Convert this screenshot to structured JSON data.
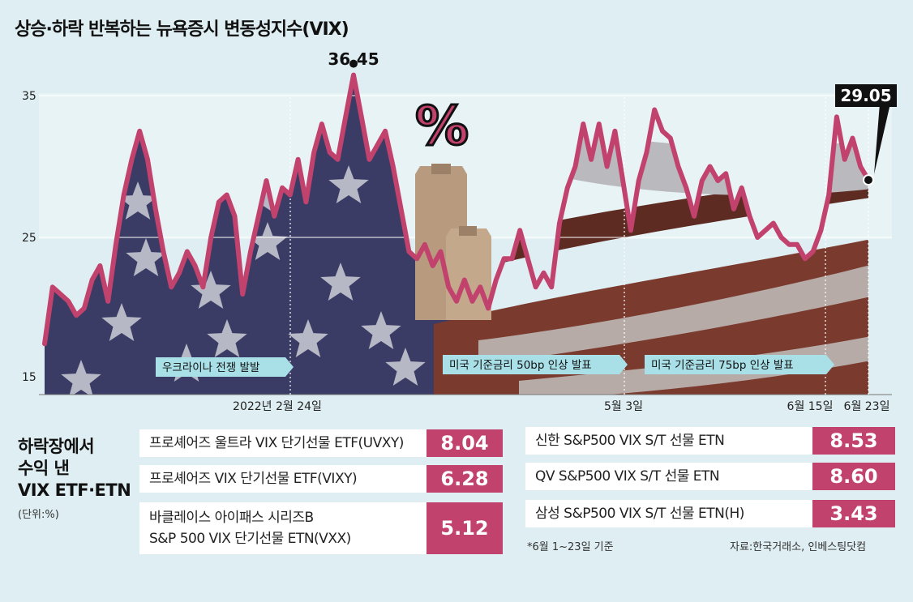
{
  "title": "상승·하락 반복하는 뉴욕증시 변동성지수(VIX)",
  "chart_data": {
    "type": "line",
    "title": "상승·하락 반복하는 뉴욕증시 변동성지수(VIX)",
    "y_ticks": [
      "35",
      "25",
      "15"
    ],
    "ylim": [
      15,
      36.45
    ],
    "x_labels": [
      "2022년 2월 24일",
      "5월 3일",
      "6월 15일",
      "6월 23일"
    ],
    "series": [
      {
        "values": [
          17.5,
          21.5,
          21.0,
          20.5,
          19.5,
          20.0,
          22.0,
          23.0,
          20.5,
          24.5,
          28.0,
          30.5,
          32.5,
          30.5,
          27.0,
          24.0,
          21.5,
          22.5,
          24.0,
          23.0,
          21.5,
          25.0,
          27.5,
          28.0,
          26.5,
          21.0,
          24.0,
          26.5,
          29.0,
          26.5,
          28.5,
          28.0,
          30.5,
          27.5,
          31.0,
          33.0,
          31.0,
          30.5,
          33.5,
          36.45,
          33.5,
          30.5,
          31.5,
          32.5,
          30.0,
          27.0,
          24.0,
          23.5,
          24.5,
          23.0,
          24.0,
          21.5,
          20.5,
          22.0,
          20.5,
          21.5,
          20.0,
          22.0,
          23.5,
          23.5,
          25.5,
          23.5,
          21.5,
          22.5,
          21.5,
          26.0,
          28.5,
          30.0,
          33.0,
          30.5,
          33.0,
          30.0,
          32.5,
          29.0,
          25.5,
          29.0,
          31.0,
          34.0,
          32.5,
          32.0,
          30.0,
          28.5,
          26.5,
          29.0,
          30.0,
          29.0,
          29.5,
          27.0,
          28.5,
          26.5,
          25.0,
          25.5,
          26.0,
          25.0,
          24.5,
          24.5,
          23.5,
          24.0,
          25.5,
          28.0,
          33.5,
          30.5,
          32.0,
          30.0,
          29.05
        ]
      }
    ],
    "annotations": {
      "peak": "36.45",
      "last": "29.05",
      "events": [
        "우크라이나 전쟁 발발",
        "미국 기준금리 50bp 인상 발표",
        "미국 기준금리 75bp 인상 발표"
      ]
    },
    "line_color": "#c2426e"
  },
  "section": {
    "title_lines": [
      "하락장에서",
      "수익 낸",
      "VIX ETF·ETN"
    ],
    "unit": "(단위:%)"
  },
  "left_items": [
    {
      "name": "프로셰어즈 울트라 VIX 단기선물 ETF(UVXY)",
      "value": "8.04"
    },
    {
      "name": "프로셰어즈 VIX 단기선물 ETF(VIXY)",
      "value": "6.28"
    },
    {
      "name": "바클레이스 아이패스 시리즈B\nS&P 500 VIX 단기선물 ETN(VXX)",
      "value": "5.12"
    }
  ],
  "right_items": [
    {
      "name": "신한 S&P500 VIX S/T 선물 ETN",
      "value": "8.53"
    },
    {
      "name": "QV S&P500 VIX S/T 선물 ETN",
      "value": "8.60"
    },
    {
      "name": "삼성 S&P500 VIX S/T 선물 ETN(H)",
      "value": "3.43"
    }
  ],
  "footnote": "*6월 1~23일 기준",
  "source": "자료:한국거래소, 인베스팅닷컴",
  "colors": {
    "accent": "#c2426e",
    "background": "#dfeef2",
    "navy": "#3b3c66",
    "brown": "#7a3b2e"
  }
}
